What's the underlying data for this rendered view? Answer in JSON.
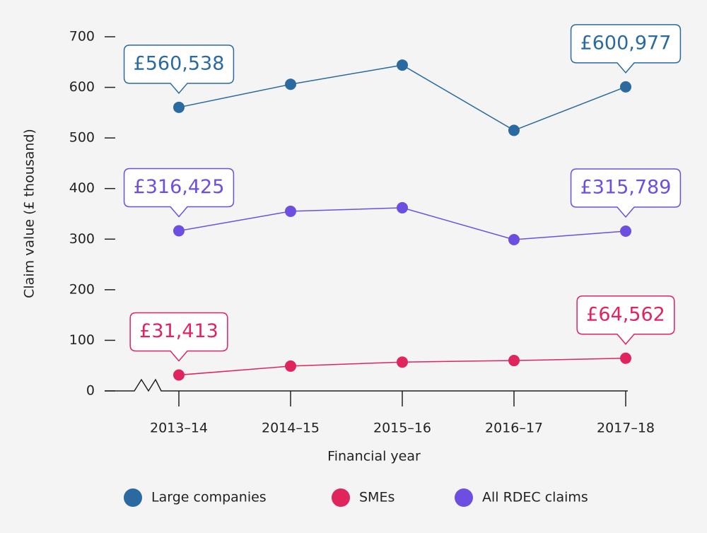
{
  "chart_data": {
    "type": "line",
    "ylabel": "Claim value (£ thousand)",
    "xlabel": "Financial year",
    "categories": [
      "2013–14",
      "2014–15",
      "2015–16",
      "2016–17",
      "2017–18"
    ],
    "series": [
      {
        "name": "Large companies",
        "color": "#2b6aa0",
        "values": [
          560.538,
          606,
          644,
          515,
          600.977
        ],
        "value_labels": [
          "£560,538",
          null,
          null,
          null,
          "£600,977"
        ]
      },
      {
        "name": "SMEs",
        "color": "#e0245e",
        "values": [
          31.413,
          49,
          57,
          60,
          64.562
        ],
        "value_labels": [
          "£31,413",
          null,
          null,
          null,
          "£64,562"
        ]
      },
      {
        "name": "All RDEC claims",
        "color": "#6c4fe0",
        "values": [
          316.425,
          355,
          362,
          299,
          315.789
        ],
        "value_labels": [
          "£316,425",
          null,
          null,
          null,
          "£315,789"
        ]
      }
    ],
    "ylim": [
      0,
      700
    ],
    "yticks": [
      0,
      100,
      200,
      300,
      400,
      500,
      600,
      700
    ],
    "legend": "bottom"
  }
}
